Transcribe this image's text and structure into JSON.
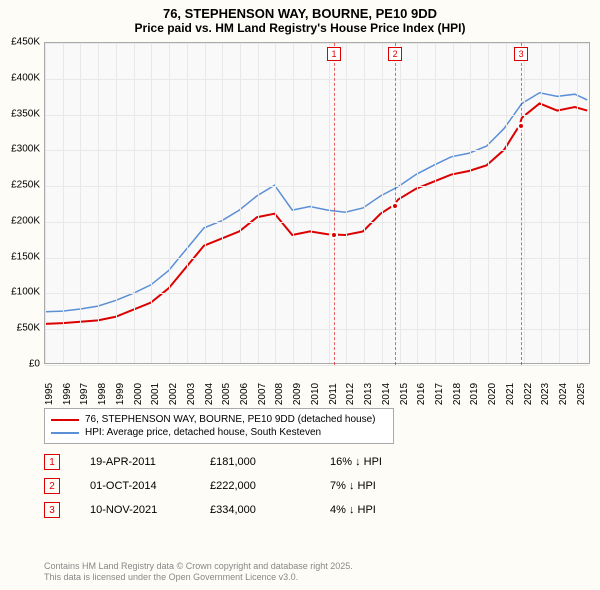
{
  "title": "76, STEPHENSON WAY, BOURNE, PE10 9DD",
  "subtitle": "Price paid vs. HM Land Registry's House Price Index (HPI)",
  "chart": {
    "type": "line",
    "background_color": "#f9f9f9",
    "page_background": "#fdfcf6",
    "grid_color": "#e8e8e8",
    "border_color": "#aaaaaa",
    "xlim": [
      1995,
      2025.8
    ],
    "ylim": [
      0,
      450000
    ],
    "ytick_step": 50000,
    "y_ticks": [
      "£0",
      "£50K",
      "£100K",
      "£150K",
      "£200K",
      "£250K",
      "£300K",
      "£350K",
      "£400K",
      "£450K"
    ],
    "x_ticks": [
      1995,
      1996,
      1997,
      1998,
      1999,
      2000,
      2001,
      2002,
      2003,
      2004,
      2005,
      2006,
      2007,
      2008,
      2009,
      2010,
      2011,
      2012,
      2013,
      2014,
      2015,
      2016,
      2017,
      2018,
      2019,
      2020,
      2021,
      2022,
      2023,
      2024,
      2025
    ],
    "series": [
      {
        "name": "price_paid",
        "label": "76, STEPHENSON WAY, BOURNE, PE10 9DD (detached house)",
        "color": "#dc0000",
        "line_width": 2,
        "data": [
          [
            1995,
            55000
          ],
          [
            1996,
            56000
          ],
          [
            1997,
            58000
          ],
          [
            1998,
            60000
          ],
          [
            1999,
            65000
          ],
          [
            2000,
            75000
          ],
          [
            2001,
            85000
          ],
          [
            2002,
            105000
          ],
          [
            2003,
            135000
          ],
          [
            2004,
            165000
          ],
          [
            2005,
            175000
          ],
          [
            2006,
            185000
          ],
          [
            2007,
            205000
          ],
          [
            2008,
            210000
          ],
          [
            2009,
            180000
          ],
          [
            2010,
            185000
          ],
          [
            2011,
            181000
          ],
          [
            2012,
            180000
          ],
          [
            2013,
            185000
          ],
          [
            2014,
            210000
          ],
          [
            2014.75,
            222000
          ],
          [
            2015,
            230000
          ],
          [
            2016,
            245000
          ],
          [
            2017,
            255000
          ],
          [
            2018,
            265000
          ],
          [
            2019,
            270000
          ],
          [
            2020,
            278000
          ],
          [
            2021,
            300000
          ],
          [
            2021.86,
            334000
          ],
          [
            2022,
            345000
          ],
          [
            2023,
            365000
          ],
          [
            2024,
            355000
          ],
          [
            2025,
            360000
          ],
          [
            2025.7,
            355000
          ]
        ]
      },
      {
        "name": "hpi",
        "label": "HPI: Average price, detached house, South Kesteven",
        "color": "#5b8fd6",
        "line_width": 1.5,
        "data": [
          [
            1995,
            72000
          ],
          [
            1996,
            73000
          ],
          [
            1997,
            76000
          ],
          [
            1998,
            80000
          ],
          [
            1999,
            88000
          ],
          [
            2000,
            98000
          ],
          [
            2001,
            110000
          ],
          [
            2002,
            130000
          ],
          [
            2003,
            160000
          ],
          [
            2004,
            190000
          ],
          [
            2005,
            200000
          ],
          [
            2006,
            215000
          ],
          [
            2007,
            235000
          ],
          [
            2008,
            250000
          ],
          [
            2009,
            215000
          ],
          [
            2010,
            220000
          ],
          [
            2011,
            215000
          ],
          [
            2012,
            212000
          ],
          [
            2013,
            218000
          ],
          [
            2014,
            235000
          ],
          [
            2015,
            248000
          ],
          [
            2016,
            265000
          ],
          [
            2017,
            278000
          ],
          [
            2018,
            290000
          ],
          [
            2019,
            295000
          ],
          [
            2020,
            305000
          ],
          [
            2021,
            330000
          ],
          [
            2022,
            365000
          ],
          [
            2023,
            380000
          ],
          [
            2024,
            375000
          ],
          [
            2025,
            378000
          ],
          [
            2025.7,
            370000
          ]
        ]
      }
    ],
    "markers": [
      {
        "id": "1",
        "date": "19-APR-2011",
        "price": "£181,000",
        "diff": "16% ↓ HPI",
        "x": 2011.3,
        "y": 181000
      },
      {
        "id": "2",
        "date": "01-OCT-2014",
        "price": "£222,000",
        "diff": "7% ↓ HPI",
        "x": 2014.75,
        "y": 222000
      },
      {
        "id": "3",
        "date": "10-NOV-2021",
        "price": "£334,000",
        "diff": "4% ↓ HPI",
        "x": 2021.86,
        "y": 334000
      }
    ]
  },
  "legend": {
    "items": [
      {
        "color": "#dc0000",
        "label_ref": "chart.series.0.label"
      },
      {
        "color": "#5b8fd6",
        "label_ref": "chart.series.1.label"
      }
    ]
  },
  "attribution_line1": "Contains HM Land Registry data © Crown copyright and database right 2025.",
  "attribution_line2": "This data is licensed under the Open Government Licence v3.0."
}
